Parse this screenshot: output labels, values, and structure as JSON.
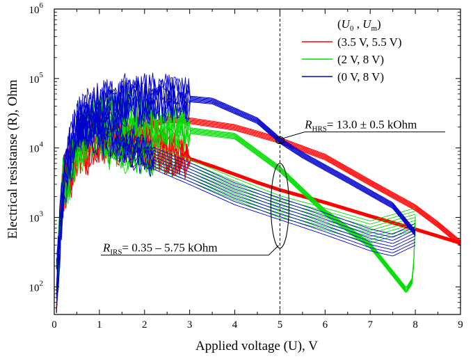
{
  "chart_data": {
    "type": "line",
    "title": "",
    "xlabel": "Applied voltage (U), V",
    "ylabel": "Electrical resistanse (R), Ohm",
    "xlim": [
      0,
      9
    ],
    "ylim": [
      40,
      1000000
    ],
    "yscale": "log",
    "x_ticks": [
      "0",
      "1",
      "2",
      "3",
      "4",
      "5",
      "6",
      "7",
      "8",
      "9"
    ],
    "y_ticks": [
      {
        "base": "10",
        "exp": "2",
        "value": 100
      },
      {
        "base": "10",
        "exp": "3",
        "value": 1000
      },
      {
        "base": "10",
        "exp": "4",
        "value": 10000
      },
      {
        "base": "10",
        "exp": "5",
        "value": 100000
      },
      {
        "base": "10",
        "exp": "6",
        "value": 1000000
      }
    ],
    "grid": false,
    "legend": {
      "position": "top-right",
      "header": {
        "open": "(",
        "u0": "U",
        "u0_sub": "0",
        "sep": " , ",
        "um": "U",
        "um_sub": "m",
        "close": ")"
      }
    },
    "series": [
      {
        "name": "(3.5 V, 5.5 V)",
        "color": "#ff0000",
        "U0": 3.5,
        "Um": 5.5,
        "forward": [
          [
            0.05,
            100
          ],
          [
            0.2,
            3000
          ],
          [
            0.5,
            8000
          ],
          [
            1.0,
            15000
          ],
          [
            1.5,
            13000
          ],
          [
            2.5,
            9000
          ],
          [
            3.5,
            5500
          ],
          [
            4.5,
            3200
          ],
          [
            5.0,
            2500
          ],
          [
            6.0,
            1650
          ],
          [
            7.0,
            1050
          ],
          [
            8.0,
            680
          ],
          [
            9.0,
            430
          ]
        ],
        "reverse": [
          [
            9.0,
            430
          ],
          [
            8.5,
            800
          ],
          [
            8.0,
            1400
          ],
          [
            7.0,
            3200
          ],
          [
            6.0,
            7500
          ],
          [
            5.0,
            13000
          ],
          [
            4.0,
            20000
          ],
          [
            3.0,
            25000
          ],
          [
            2.5,
            26000
          ],
          [
            2.0,
            20000
          ],
          [
            1.5,
            16000
          ],
          [
            1.0,
            15000
          ]
        ]
      },
      {
        "name": "(2 V, 8 V)",
        "color": "#00dd00",
        "U0": 2,
        "Um": 8,
        "forward": [
          [
            0.05,
            100
          ],
          [
            0.2,
            3000
          ],
          [
            0.5,
            10000
          ],
          [
            1.0,
            25000
          ],
          [
            1.5,
            30000
          ],
          [
            2.0,
            25000
          ],
          [
            3.0,
            18000
          ],
          [
            4.0,
            15000
          ],
          [
            5.0,
            5000
          ],
          [
            6.0,
            1200
          ],
          [
            7.0,
            400
          ],
          [
            7.8,
            90
          ],
          [
            7.95,
            130
          ],
          [
            8.0,
            1000
          ]
        ],
        "reverse": [
          [
            8.0,
            1000
          ],
          [
            7.0,
            650
          ],
          [
            6.0,
            1000
          ],
          [
            5.0,
            1500
          ],
          [
            4.0,
            2700
          ],
          [
            3.0,
            5000
          ],
          [
            2.0,
            9000
          ],
          [
            1.5,
            10000
          ],
          [
            1.0,
            12000
          ]
        ]
      },
      {
        "name": "(0 V, 8 V)",
        "color": "#0000cc",
        "U0": 0,
        "Um": 8,
        "forward": [
          [
            0.05,
            100
          ],
          [
            0.2,
            3000
          ],
          [
            0.5,
            20000
          ],
          [
            1.0,
            35000
          ],
          [
            1.5,
            45000
          ],
          [
            2.5,
            55000
          ],
          [
            3.5,
            48000
          ],
          [
            4.5,
            25000
          ],
          [
            5.0,
            13000
          ],
          [
            5.5,
            8000
          ],
          [
            6.5,
            3500
          ],
          [
            7.5,
            1500
          ],
          [
            8.0,
            600
          ]
        ],
        "reverse": [
          [
            8.0,
            600
          ],
          [
            7.5,
            420
          ],
          [
            7.0,
            500
          ],
          [
            6.0,
            850
          ],
          [
            5.0,
            1400
          ],
          [
            4.0,
            2300
          ],
          [
            3.0,
            4500
          ],
          [
            2.0,
            8500
          ],
          [
            1.0,
            18000
          ],
          [
            0.5,
            25000
          ]
        ]
      }
    ],
    "annotations": [
      {
        "symbol": "R",
        "sub": "HRS",
        "text": "= 13.0 ± 0.5 kOhm",
        "x": 5.0,
        "y": 13000,
        "ellipse_y_range": [
          11500,
          14500
        ],
        "label_anchor": [
          5.55,
          17000
        ]
      },
      {
        "symbol": "R",
        "sub": "IRS",
        "text": "= 0.35 – 5.75 kOhm",
        "x": 5.0,
        "y": 1400,
        "ellipse_y_range": [
          360,
          6000
        ],
        "label_anchor": [
          4.75,
          360
        ]
      }
    ],
    "reference_line": {
      "x": 5.0,
      "style": "dashed"
    }
  }
}
